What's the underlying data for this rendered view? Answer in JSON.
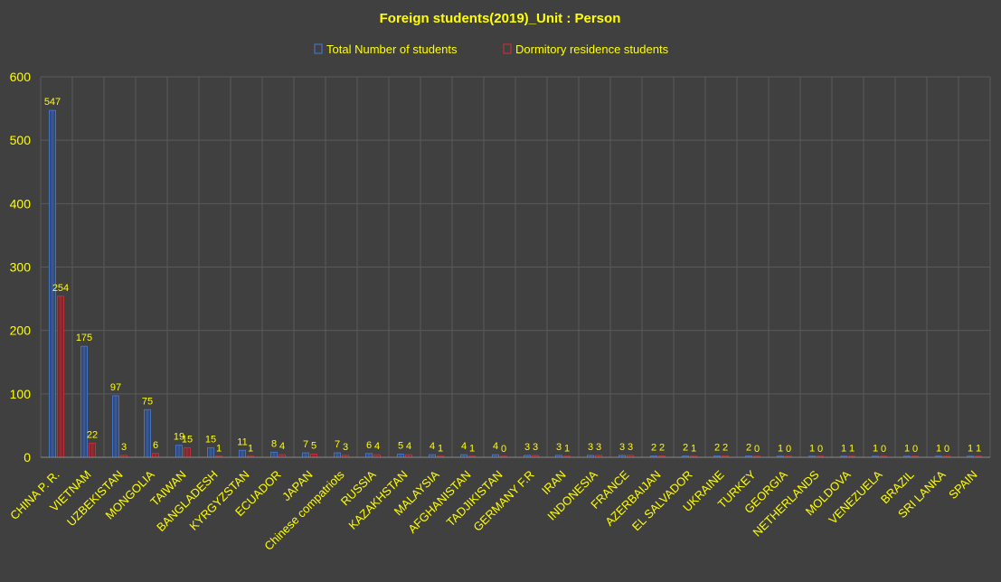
{
  "chart_data": {
    "type": "bar",
    "title": "Foreign students(2019)_Unit : Person",
    "xlabel": "",
    "ylabel": "",
    "ylim": [
      0,
      600
    ],
    "yticks": [
      "0",
      "100",
      "200",
      "300",
      "400",
      "500",
      "600"
    ],
    "grid": true,
    "legend_position": "top",
    "categories": [
      "CHINA P. R.",
      "VIETNAM",
      "UZBEKISTAN",
      "MONGOLIA",
      "TAIWAN",
      "BANGLADESH",
      "KYRGYZSTAN",
      "ECUADOR",
      "JAPAN",
      "Chinese compatriots",
      "RUSSIA",
      "KAZAKHSTAN",
      "MALAYSIA",
      "AFGHANISTAN",
      "TADJIKISTAN",
      "GERMANY F.R",
      "IRAN",
      "INDONESIA",
      "FRANCE",
      "AZERBAIJAN",
      "EL SALVADOR",
      "UKRAINE",
      "TURKEY",
      "GEORGIA",
      "NETHERLANDS",
      "MOLDOVA",
      "VENEZUELA",
      "BRAZIL",
      "SRI LANKA",
      "SPAIN"
    ],
    "series": [
      {
        "name": "Total Number of students",
        "color": "#4472c4",
        "values": [
          547,
          175,
          97,
          75,
          19,
          15,
          11,
          8,
          7,
          7,
          6,
          5,
          4,
          4,
          4,
          3,
          3,
          3,
          3,
          2,
          2,
          2,
          2,
          1,
          1,
          1,
          1,
          1,
          1,
          1
        ]
      },
      {
        "name": "Dormitory residence students",
        "color": "#c0303a",
        "values": [
          254,
          22,
          3,
          6,
          15,
          1,
          1,
          4,
          5,
          3,
          4,
          4,
          1,
          1,
          0,
          3,
          1,
          3,
          3,
          2,
          1,
          2,
          0,
          0,
          0,
          1,
          0,
          0,
          0,
          1
        ]
      }
    ]
  }
}
